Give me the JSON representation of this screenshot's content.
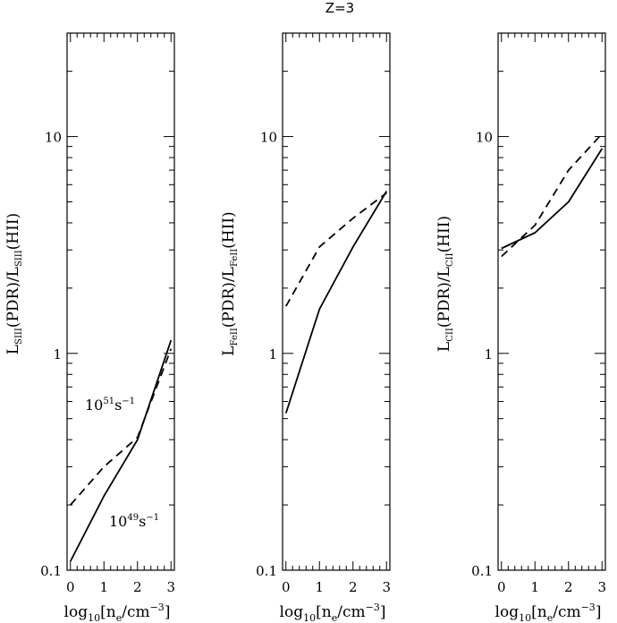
{
  "figure_title": "Z=3",
  "chart_data": [
    {
      "type": "line",
      "ylabel": {
        "main": "L",
        "sub": "SIII",
        "mid": "(PDR)/L",
        "sub2": "SIII",
        "end": "(HII)"
      },
      "xlabel": {
        "pre": "log",
        "sub": "10",
        "mid": "[n",
        "sub2": "e",
        "post": "/cm",
        "sup": "−3",
        "end": "]"
      },
      "yscale": "log",
      "ylim": [
        0.1,
        30
      ],
      "xlim": [
        -0.1,
        3.1
      ],
      "x_ticks": [
        "0",
        "1",
        "2",
        "3"
      ],
      "y_tick_labels": [
        "0.1",
        "1",
        "10"
      ],
      "series": [
        {
          "name": "10^49 s^-1",
          "style": "solid",
          "x": [
            0,
            1,
            2,
            3
          ],
          "y": [
            0.11,
            0.22,
            0.4,
            1.15
          ]
        },
        {
          "name": "10^51 s^-1",
          "style": "dashed",
          "x": [
            0,
            1,
            2,
            3
          ],
          "y": [
            0.2,
            0.3,
            0.41,
            1.05
          ]
        }
      ],
      "annotations": [
        {
          "base": "10",
          "sup": "51",
          "unit": "s",
          "unit_sup": "−1"
        },
        {
          "base": "10",
          "sup": "49",
          "unit": "s",
          "unit_sup": "−1"
        }
      ]
    },
    {
      "type": "line",
      "ylabel": {
        "main": "L",
        "sub": "FeII",
        "mid": "(PDR)/L",
        "sub2": "FeII",
        "end": "(HII)"
      },
      "xlabel": {
        "pre": "log",
        "sub": "10",
        "mid": "[n",
        "sub2": "e",
        "post": "/cm",
        "sup": "−3",
        "end": "]"
      },
      "yscale": "log",
      "ylim": [
        0.1,
        30
      ],
      "xlim": [
        -0.1,
        3.1
      ],
      "x_ticks": [
        "0",
        "1",
        "2",
        "3"
      ],
      "y_tick_labels": [
        "0.1",
        "1",
        "10"
      ],
      "series": [
        {
          "name": "10^49 s^-1",
          "style": "solid",
          "x": [
            0,
            1,
            2,
            3
          ],
          "y": [
            0.53,
            1.6,
            3.1,
            5.6
          ]
        },
        {
          "name": "10^51 s^-1",
          "style": "dashed",
          "x": [
            0,
            1,
            2,
            3
          ],
          "y": [
            1.65,
            3.1,
            4.2,
            5.5
          ]
        }
      ],
      "annotations": []
    },
    {
      "type": "line",
      "ylabel": {
        "main": "L",
        "sub": "CII",
        "mid": "(PDR)/L",
        "sub2": "CII",
        "end": "(HII)"
      },
      "xlabel": {
        "pre": "log",
        "sub": "10",
        "mid": "[n",
        "sub2": "e",
        "post": "/cm",
        "sup": "−3",
        "end": "]"
      },
      "yscale": "log",
      "ylim": [
        0.1,
        30
      ],
      "xlim": [
        -0.1,
        3.1
      ],
      "x_ticks": [
        "0",
        "1",
        "2",
        "3"
      ],
      "y_tick_labels": [
        "0.1",
        "1",
        "10"
      ],
      "series": [
        {
          "name": "10^49 s^-1",
          "style": "solid",
          "x": [
            0,
            1,
            2,
            3
          ],
          "y": [
            3.05,
            3.6,
            5.0,
            8.8
          ]
        },
        {
          "name": "10^51 s^-1",
          "style": "dashed",
          "x": [
            0,
            1,
            2,
            3
          ],
          "y": [
            2.8,
            3.9,
            7.0,
            10.3
          ]
        }
      ],
      "annotations": []
    }
  ]
}
